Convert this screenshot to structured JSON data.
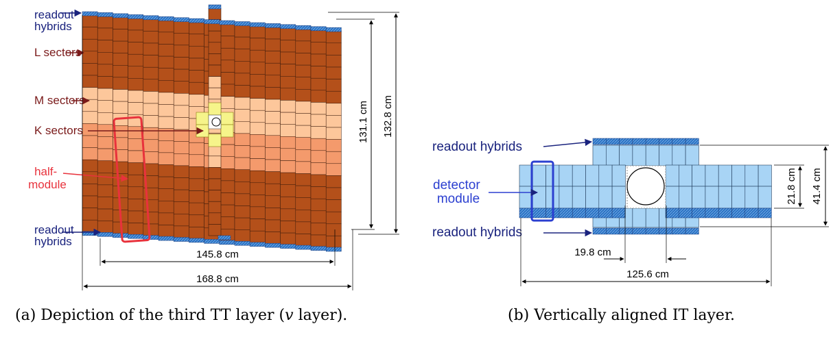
{
  "panel_a": {
    "labels": {
      "readout_top": [
        "readout",
        "hybrids"
      ],
      "l_sectors": "L sectors",
      "m_sectors": "M sectors",
      "k_sectors": "K sectors",
      "half_module": [
        "half-",
        "module"
      ],
      "readout_bottom": [
        "readout",
        "hybrids"
      ]
    },
    "dimensions": {
      "height_inner": "131.1 cm",
      "height_outer": "132.8 cm",
      "width_inner": "145.8 cm",
      "width_outer": "168.8 cm"
    },
    "caption": {
      "prefix": "(a)  Depiction of the third TT layer (",
      "var": "v",
      "suffix": " layer)."
    }
  },
  "panel_b": {
    "labels": {
      "readout_top": "readout hybrids",
      "detector_module": [
        "detector",
        "module"
      ],
      "readout_bottom": "readout hybrids"
    },
    "dimensions": {
      "height_inner": "21.8 cm",
      "height_outer": "41.4 cm",
      "width_inner": "19.8 cm",
      "width_outer": "125.6 cm"
    },
    "caption": "(b)  Vertically aligned IT layer."
  },
  "colors": {
    "l_sector": "#b4501a",
    "m_sector": "#fdc79b",
    "m_sector_dark": "#f49a6c",
    "k_sector": "#f6f48a",
    "hybrid_blue": "#2a72c4",
    "it_module": "#a8d4f5",
    "arrow_navy": "#1a237e",
    "arrow_maroon": "#7a1a1a",
    "half_module_red": "#e8323c",
    "module_outline_blue": "#2b3fd0"
  }
}
